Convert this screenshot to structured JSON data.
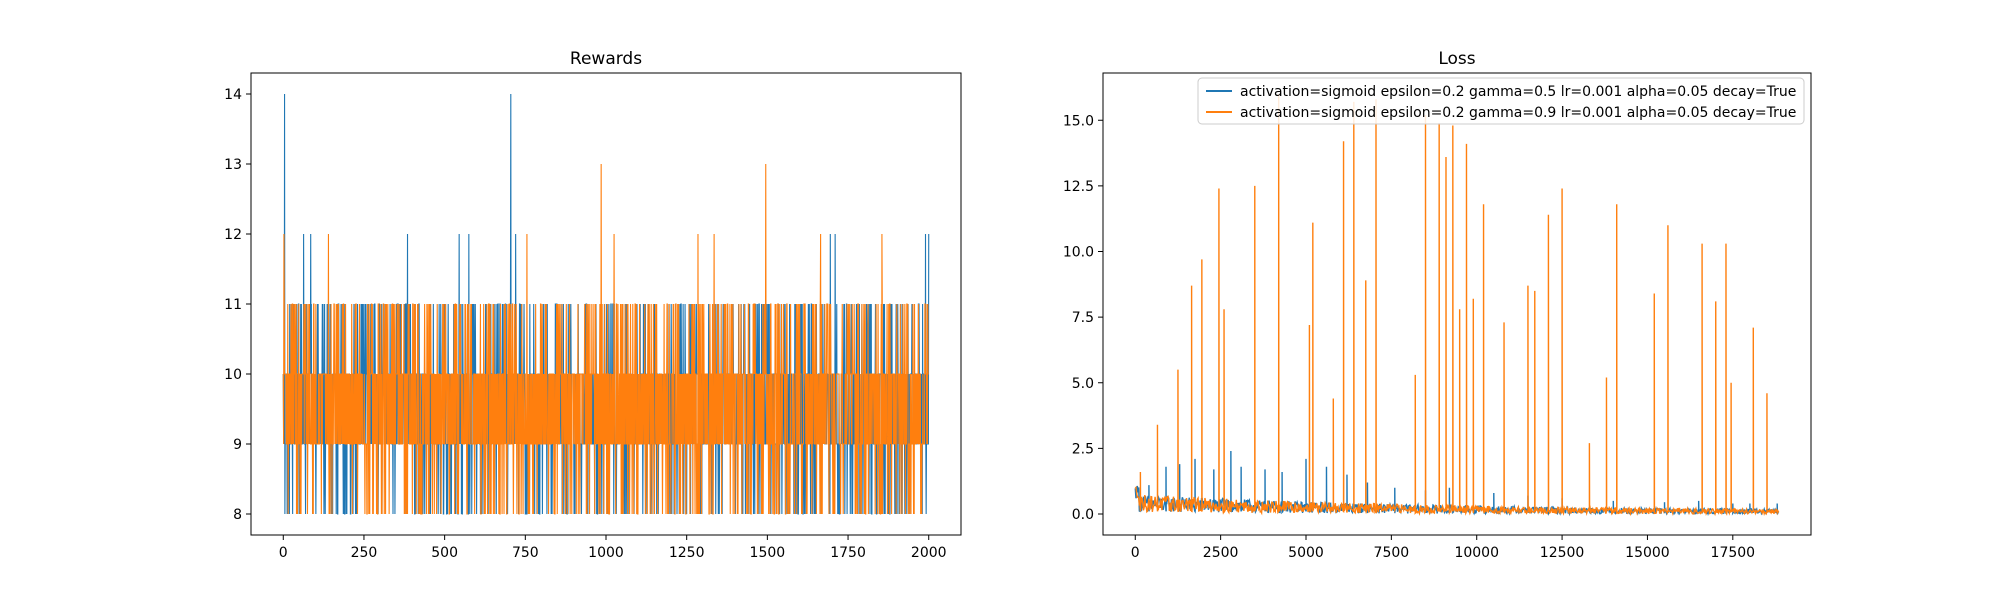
{
  "colors": {
    "series_a": "#1f77b4",
    "series_b": "#ff7f0e"
  },
  "chart_data": [
    {
      "type": "line",
      "title": "Rewards",
      "xlabel": "",
      "ylabel": "",
      "xlim": [
        -100,
        2100
      ],
      "ylim": [
        7.7,
        14.3
      ],
      "xticks": [
        0,
        250,
        500,
        750,
        1000,
        1250,
        1500,
        1750,
        2000
      ],
      "yticks": [
        8,
        9,
        10,
        11,
        12,
        13,
        14
      ],
      "xtick_labels": [
        "0",
        "250",
        "500",
        "750",
        "1000",
        "1250",
        "1500",
        "1750",
        "2000"
      ],
      "ytick_labels": [
        "8",
        "9",
        "10",
        "11",
        "12",
        "13",
        "14"
      ],
      "grid": false,
      "x_count": 2000,
      "series": [
        {
          "color": "#1f77b4",
          "range": [
            8,
            12
          ],
          "spikes": [
            [
              4,
              14
            ],
            [
              63,
              12
            ],
            [
              85,
              12
            ],
            [
              385,
              12
            ],
            [
              545,
              12
            ],
            [
              575,
              12
            ],
            [
              705,
              14
            ],
            [
              720,
              12
            ],
            [
              1695,
              12
            ],
            [
              1710,
              12
            ],
            [
              1990,
              12
            ],
            [
              2000,
              12
            ]
          ]
        },
        {
          "color": "#ff7f0e",
          "range": [
            8,
            12
          ],
          "spikes": [
            [
              2,
              12
            ],
            [
              140,
              12
            ],
            [
              755,
              12
            ],
            [
              985,
              13
            ],
            [
              1025,
              12
            ],
            [
              1285,
              12
            ],
            [
              1335,
              12
            ],
            [
              1495,
              13
            ],
            [
              1665,
              12
            ],
            [
              1855,
              12
            ]
          ]
        }
      ]
    },
    {
      "type": "line",
      "title": "Loss",
      "xlabel": "",
      "ylabel": "",
      "xlim": [
        -945,
        19790
      ],
      "ylim": [
        -0.8,
        16.8
      ],
      "xticks": [
        0,
        2500,
        5000,
        7500,
        10000,
        12500,
        15000,
        17500
      ],
      "yticks": [
        0.0,
        2.5,
        5.0,
        7.5,
        10.0,
        12.5,
        15.0
      ],
      "xtick_labels": [
        "0",
        "2500",
        "5000",
        "7500",
        "10000",
        "12500",
        "15000",
        "17500"
      ],
      "ytick_labels": [
        "0.0",
        "2.5",
        "5.0",
        "7.5",
        "10.0",
        "12.5",
        "15.0"
      ],
      "grid": false,
      "legend_position": "top-right",
      "x_max": 18850,
      "series": [
        {
          "name": "activation=sigmoid epsilon=0.2 gamma=0.5 lr=0.001 alpha=0.05 decay=True",
          "color": "#1f77b4",
          "spikes": [
            [
              400,
              1.1
            ],
            [
              900,
              1.8
            ],
            [
              1300,
              1.9
            ],
            [
              1750,
              2.1
            ],
            [
              2300,
              1.7
            ],
            [
              2800,
              2.4
            ],
            [
              3100,
              1.8
            ],
            [
              3800,
              1.7
            ],
            [
              4300,
              1.6
            ],
            [
              5000,
              2.1
            ],
            [
              5600,
              1.8
            ],
            [
              6200,
              1.5
            ],
            [
              6800,
              1.2
            ],
            [
              7600,
              1.0
            ],
            [
              8500,
              0.9
            ],
            [
              9200,
              1.0
            ],
            [
              10500,
              0.8
            ],
            [
              11500,
              0.7
            ],
            [
              12500,
              0.6
            ],
            [
              14000,
              0.5
            ],
            [
              15500,
              0.45
            ],
            [
              16500,
              0.5
            ],
            [
              17500,
              0.4
            ],
            [
              18000,
              0.4
            ],
            [
              18800,
              0.4
            ]
          ]
        },
        {
          "name": "activation=sigmoid epsilon=0.2 gamma=0.9 lr=0.001 alpha=0.05 decay=True",
          "color": "#ff7f0e",
          "spikes": [
            [
              150,
              1.6
            ],
            [
              650,
              3.4
            ],
            [
              1250,
              5.5
            ],
            [
              1650,
              8.7
            ],
            [
              1950,
              9.7
            ],
            [
              2450,
              12.4
            ],
            [
              2600,
              7.8
            ],
            [
              3500,
              12.5
            ],
            [
              4200,
              16.0
            ],
            [
              5100,
              7.2
            ],
            [
              5200,
              11.1
            ],
            [
              5800,
              4.4
            ],
            [
              6100,
              14.2
            ],
            [
              6400,
              15.7
            ],
            [
              6750,
              8.9
            ],
            [
              7050,
              15.8
            ],
            [
              8200,
              5.3
            ],
            [
              8500,
              15.2
            ],
            [
              8900,
              14.9
            ],
            [
              9100,
              13.6
            ],
            [
              9300,
              14.8
            ],
            [
              9500,
              7.8
            ],
            [
              9700,
              14.1
            ],
            [
              9900,
              8.2
            ],
            [
              10200,
              11.8
            ],
            [
              10800,
              7.3
            ],
            [
              11500,
              8.7
            ],
            [
              11700,
              8.5
            ],
            [
              12100,
              11.4
            ],
            [
              12500,
              12.4
            ],
            [
              13300,
              2.7
            ],
            [
              13800,
              5.2
            ],
            [
              14100,
              11.8
            ],
            [
              15200,
              8.4
            ],
            [
              15600,
              11.0
            ],
            [
              16600,
              10.3
            ],
            [
              17000,
              8.1
            ],
            [
              17300,
              10.3
            ],
            [
              17450,
              5.0
            ],
            [
              18100,
              7.1
            ],
            [
              18500,
              4.6
            ]
          ]
        }
      ]
    }
  ]
}
